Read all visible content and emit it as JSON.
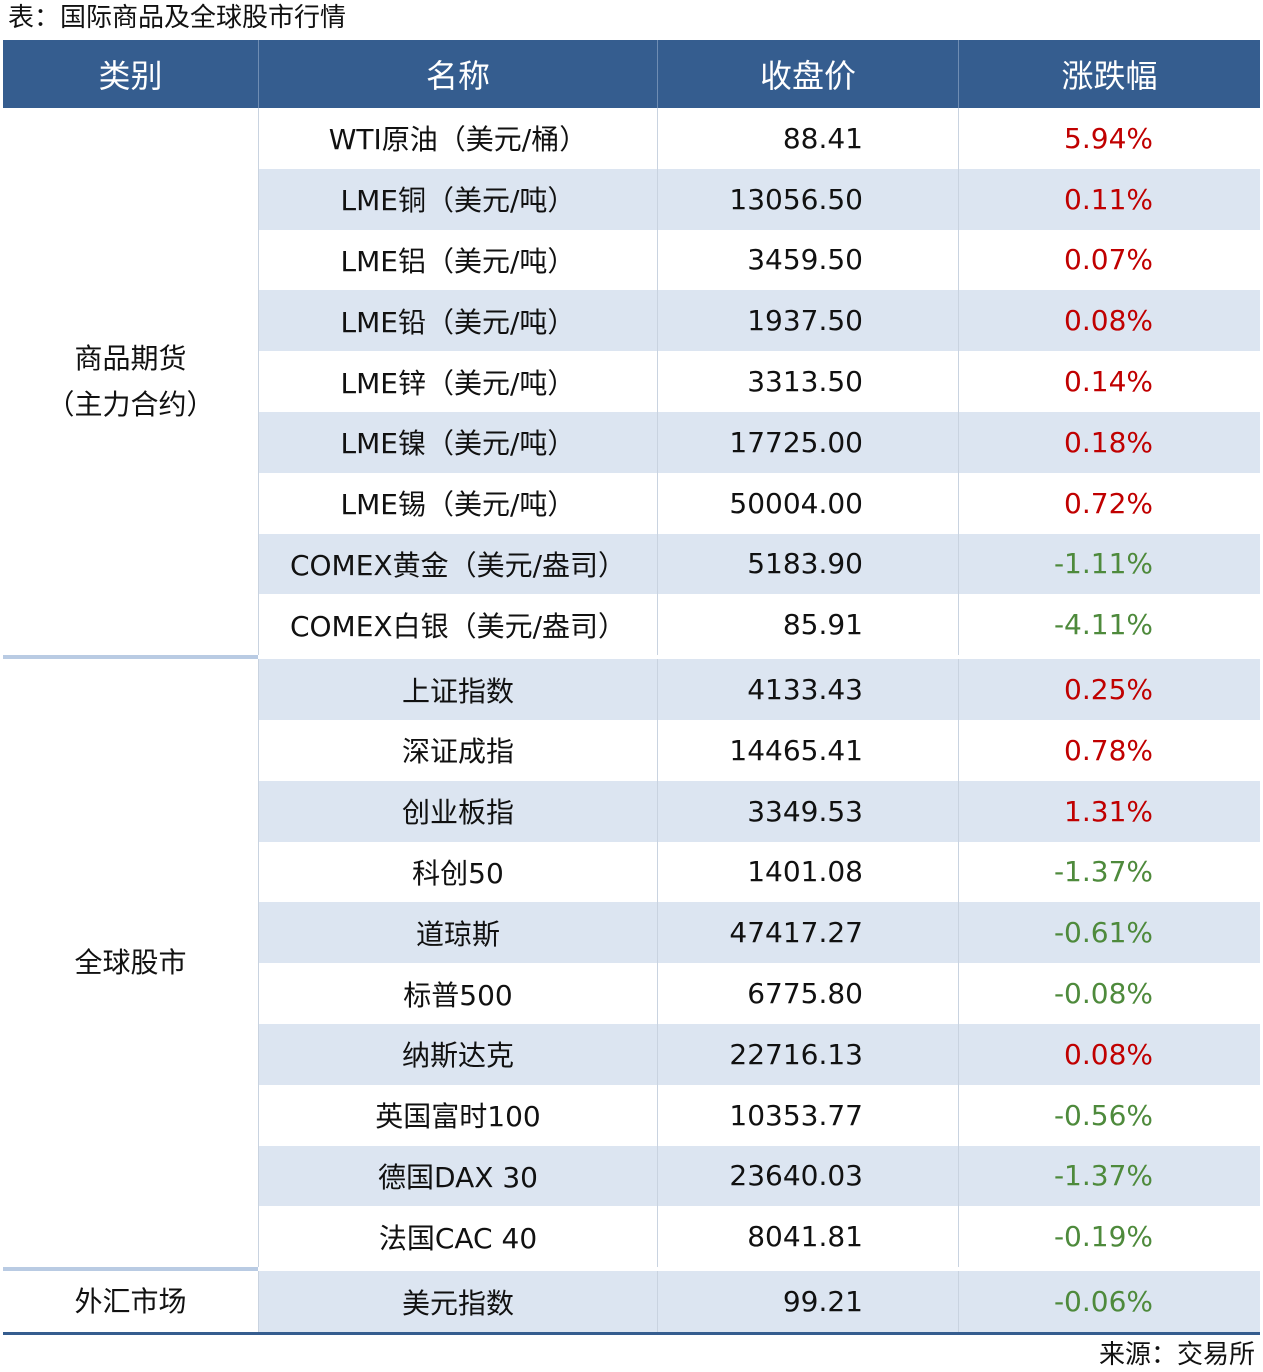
{
  "title": "表：国际商品及全球股市行情",
  "table": {
    "columns": [
      "类别",
      "名称",
      "收盘价",
      "涨跌幅"
    ],
    "groups": [
      {
        "category": [
          "商品期货",
          "（主力合约）"
        ],
        "rows": [
          [
            "WTI原油（美元/桶）",
            "88.41",
            "5.94%"
          ],
          [
            "LME铜（美元/吨）",
            "13056.50",
            "0.11%"
          ],
          [
            "LME铝（美元/吨）",
            "3459.50",
            "0.07%"
          ],
          [
            "LME铅（美元/吨）",
            "1937.50",
            "0.08%"
          ],
          [
            "LME锌（美元/吨）",
            "3313.50",
            "0.14%"
          ],
          [
            "LME镍（美元/吨）",
            "17725.00",
            "0.18%"
          ],
          [
            "LME锡（美元/吨）",
            "50004.00",
            "0.72%"
          ],
          [
            "COMEX黄金（美元/盎司）",
            "5183.90",
            "-1.11%"
          ],
          [
            "COMEX白银（美元/盎司）",
            "85.91",
            "-4.11%"
          ]
        ]
      },
      {
        "category": [
          "全球股市"
        ],
        "rows": [
          [
            "上证指数",
            "4133.43",
            "0.25%"
          ],
          [
            "深证成指",
            "14465.41",
            "0.78%"
          ],
          [
            "创业板指",
            "3349.53",
            "1.31%"
          ],
          [
            "科创50",
            "1401.08",
            "-1.37%"
          ],
          [
            "道琼斯",
            "47417.27",
            "-0.61%"
          ],
          [
            "标普500",
            "6775.80",
            "-0.08%"
          ],
          [
            "纳斯达克",
            "22716.13",
            "0.08%"
          ],
          [
            "英国富时100",
            "10353.77",
            "-0.56%"
          ],
          [
            "德国DAX 30",
            "23640.03",
            "-1.37%"
          ],
          [
            "法国CAC 40",
            "8041.81",
            "-0.19%"
          ]
        ]
      },
      {
        "category": [
          "外汇市场"
        ],
        "rows": [
          [
            "美元指数",
            "99.21",
            "-0.06%"
          ]
        ]
      }
    ]
  },
  "source": "来源：交易所"
}
